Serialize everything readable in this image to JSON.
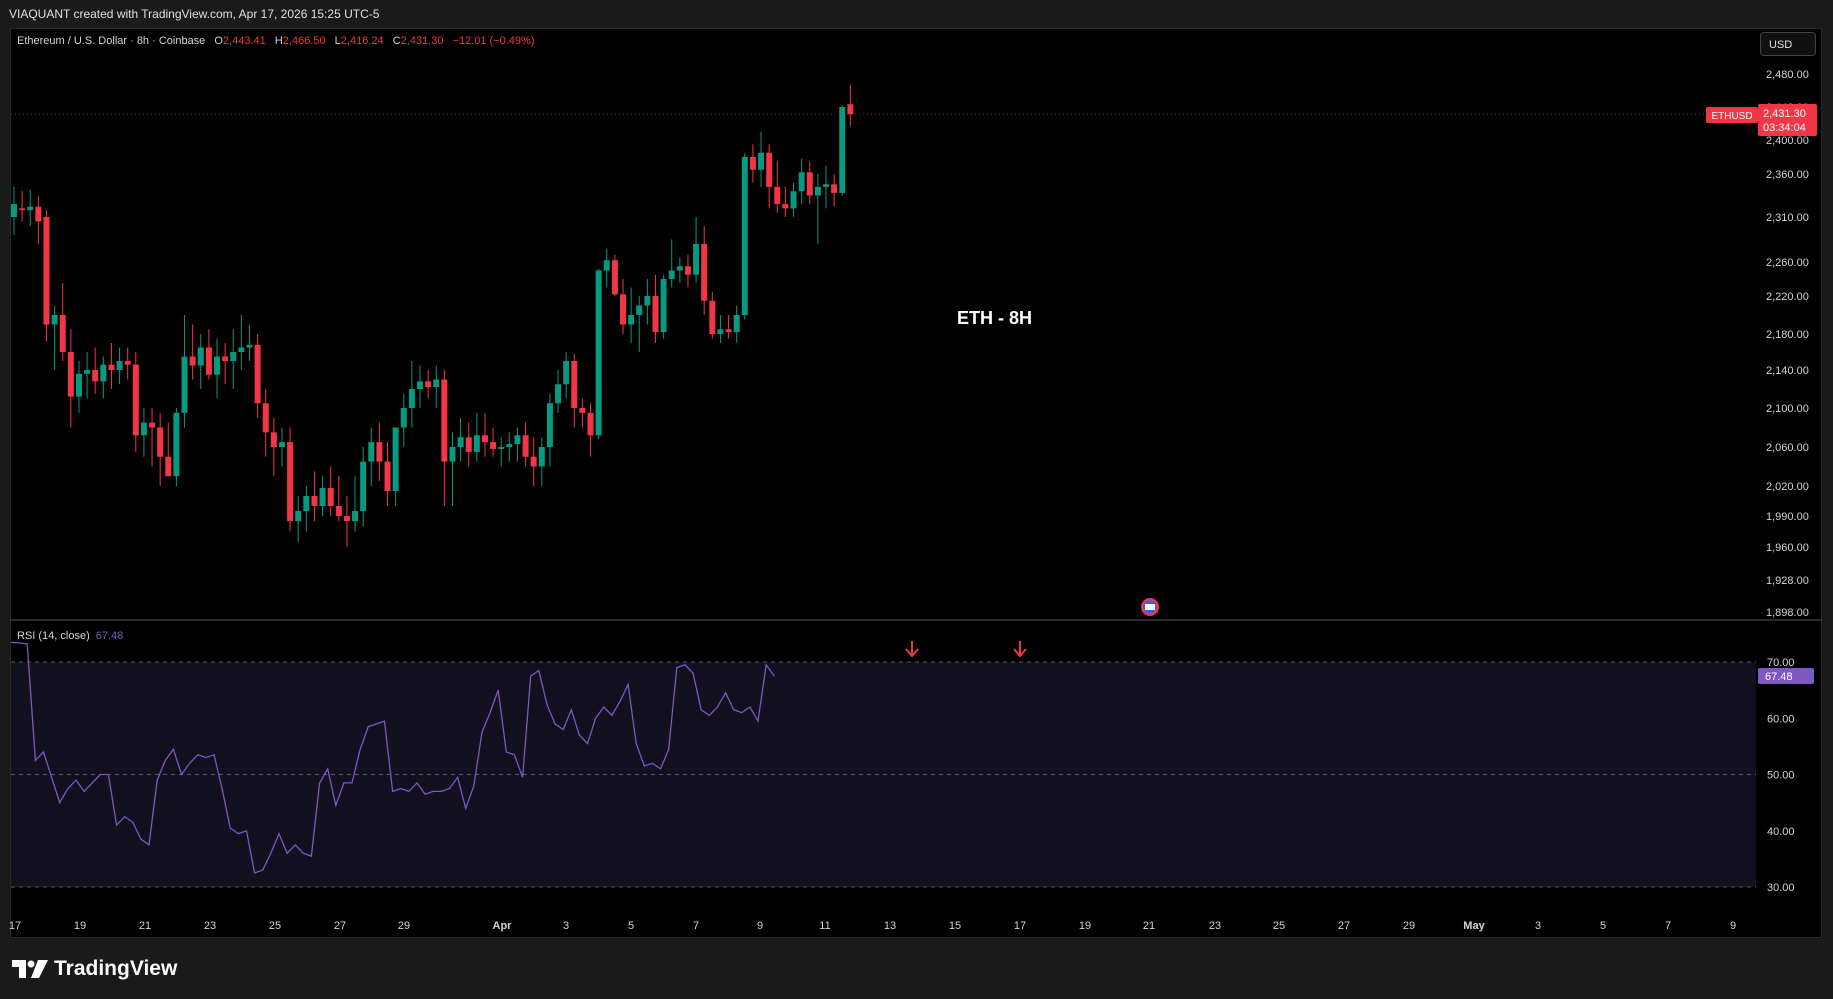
{
  "header": {
    "caption": "VIAQUANT created with TradingView.com, Apr 17, 2026 15:25 UTC-5"
  },
  "legend": {
    "symbol": "Ethereum / U.S. Dollar · 8h · Coinbase",
    "o_label": "O",
    "o_value": "2,443.41",
    "h_label": "H",
    "h_value": "2,466.50",
    "l_label": "L",
    "l_value": "2,416.24",
    "c_label": "C",
    "c_value": "2,431.30",
    "change": "−12.01 (−0.49%)"
  },
  "currency_button": "USD",
  "annotation": "ETH - 8H",
  "price_tag": {
    "symbol": "ETHUSD",
    "price": "2,431.30",
    "countdown": "03:34:04"
  },
  "rsi": {
    "label": "RSI (14, close)",
    "value": "67.48"
  },
  "footer": {
    "brand": "TradingView"
  },
  "colors": {
    "up": "#089981",
    "down": "#f23645",
    "rsi": "#7e57c2",
    "background": "#000000"
  },
  "chart_data": [
    {
      "type": "candlestick",
      "title": "Ethereum / U.S. Dollar · 8h · Coinbase",
      "price_axis_ticks": [
        2480,
        2440,
        2400,
        2360,
        2310,
        2260,
        2220,
        2180,
        2140,
        2100,
        2060,
        2020,
        1990,
        1960,
        1928,
        1898
      ],
      "price_axis_labels": [
        "2,480.00",
        "2,440.00",
        "2,400.00",
        "2,360.00",
        "2,310.00",
        "2,260.00",
        "2,220.00",
        "2,180.00",
        "2,140.00",
        "2,100.00",
        "2,060.00",
        "2,020.00",
        "1,990.00",
        "1,960.00",
        "1,928.00",
        "1,898.00"
      ],
      "time_axis_labels": [
        "17",
        "19",
        "21",
        "23",
        "25",
        "27",
        "29",
        "Apr",
        "3",
        "5",
        "7",
        "9",
        "11",
        "13",
        "15",
        "17",
        "19",
        "21",
        "23",
        "25",
        "27",
        "29",
        "May",
        "3",
        "5",
        "7",
        "9"
      ],
      "ohlc": [
        [
          2310,
          2345,
          2290,
          2325
        ],
        [
          2320,
          2340,
          2305,
          2318
        ],
        [
          2318,
          2342,
          2300,
          2322
        ],
        [
          2322,
          2335,
          2280,
          2305
        ],
        [
          2310,
          2318,
          2172,
          2190
        ],
        [
          2190,
          2210,
          2140,
          2200
        ],
        [
          2200,
          2235,
          2150,
          2160
        ],
        [
          2160,
          2185,
          2080,
          2112
        ],
        [
          2112,
          2150,
          2095,
          2136
        ],
        [
          2136,
          2160,
          2110,
          2140
        ],
        [
          2140,
          2165,
          2115,
          2128
        ],
        [
          2128,
          2155,
          2110,
          2146
        ],
        [
          2146,
          2170,
          2120,
          2140
        ],
        [
          2140,
          2165,
          2125,
          2150
        ],
        [
          2150,
          2165,
          2130,
          2146
        ],
        [
          2146,
          2160,
          2055,
          2072
        ],
        [
          2072,
          2100,
          2050,
          2085
        ],
        [
          2085,
          2100,
          2040,
          2080
        ],
        [
          2080,
          2095,
          2020,
          2050
        ],
        [
          2050,
          2085,
          2030,
          2030
        ],
        [
          2030,
          2100,
          2020,
          2095
        ],
        [
          2095,
          2200,
          2080,
          2155
        ],
        [
          2155,
          2190,
          2130,
          2145
        ],
        [
          2145,
          2180,
          2120,
          2165
        ],
        [
          2165,
          2185,
          2130,
          2135
        ],
        [
          2135,
          2175,
          2110,
          2155
        ],
        [
          2155,
          2170,
          2125,
          2150
        ],
        [
          2150,
          2185,
          2120,
          2160
        ],
        [
          2160,
          2200,
          2140,
          2165
        ],
        [
          2165,
          2190,
          2150,
          2168
        ],
        [
          2168,
          2180,
          2090,
          2105
        ],
        [
          2105,
          2120,
          2050,
          2075
        ],
        [
          2075,
          2090,
          2030,
          2060
        ],
        [
          2060,
          2080,
          2040,
          2065
        ],
        [
          2065,
          2080,
          1975,
          1985
        ],
        [
          1985,
          2010,
          1965,
          1995
        ],
        [
          1995,
          2020,
          1975,
          2010
        ],
        [
          2010,
          2035,
          1985,
          2000
        ],
        [
          2000,
          2030,
          1990,
          2018
        ],
        [
          2018,
          2040,
          1990,
          2000
        ],
        [
          2000,
          2030,
          1985,
          1990
        ],
        [
          1990,
          2010,
          1960,
          1985
        ],
        [
          1985,
          2030,
          1975,
          1995
        ],
        [
          1995,
          2060,
          1980,
          2045
        ],
        [
          2045,
          2080,
          2020,
          2065
        ],
        [
          2065,
          2085,
          2025,
          2045
        ],
        [
          2045,
          2065,
          2000,
          2015
        ],
        [
          2015,
          2080,
          2000,
          2080
        ],
        [
          2080,
          2115,
          2060,
          2100
        ],
        [
          2100,
          2150,
          2080,
          2120
        ],
        [
          2120,
          2145,
          2100,
          2128
        ],
        [
          2128,
          2140,
          2110,
          2122
        ],
        [
          2122,
          2145,
          2100,
          2130
        ],
        [
          2130,
          2140,
          2000,
          2045
        ],
        [
          2045,
          2075,
          2000,
          2060
        ],
        [
          2060,
          2090,
          2045,
          2070
        ],
        [
          2070,
          2085,
          2040,
          2055
        ],
        [
          2055,
          2095,
          2045,
          2072
        ],
        [
          2072,
          2095,
          2050,
          2065
        ],
        [
          2065,
          2080,
          2050,
          2058
        ],
        [
          2058,
          2070,
          2040,
          2060
        ],
        [
          2060,
          2075,
          2045,
          2063
        ],
        [
          2063,
          2080,
          2045,
          2072
        ],
        [
          2072,
          2085,
          2040,
          2050
        ],
        [
          2050,
          2070,
          2020,
          2040
        ],
        [
          2040,
          2070,
          2020,
          2060
        ],
        [
          2060,
          2115,
          2040,
          2105
        ],
        [
          2105,
          2140,
          2095,
          2125
        ],
        [
          2125,
          2160,
          2110,
          2150
        ],
        [
          2150,
          2158,
          2080,
          2100
        ],
        [
          2100,
          2110,
          2080,
          2095
        ],
        [
          2095,
          2105,
          2050,
          2072
        ],
        [
          2072,
          2252,
          2068,
          2250
        ],
        [
          2250,
          2275,
          2230,
          2262
        ],
        [
          2262,
          2268,
          2220,
          2222
        ],
        [
          2222,
          2240,
          2180,
          2190
        ],
        [
          2190,
          2230,
          2170,
          2200
        ],
        [
          2200,
          2220,
          2160,
          2210
        ],
        [
          2210,
          2240,
          2190,
          2220
        ],
        [
          2220,
          2245,
          2170,
          2182
        ],
        [
          2182,
          2245,
          2175,
          2240
        ],
        [
          2240,
          2285,
          2230,
          2250
        ],
        [
          2250,
          2265,
          2235,
          2255
        ],
        [
          2255,
          2268,
          2230,
          2245
        ],
        [
          2245,
          2310,
          2235,
          2280
        ],
        [
          2280,
          2300,
          2200,
          2215
        ],
        [
          2215,
          2225,
          2175,
          2180
        ],
        [
          2180,
          2200,
          2170,
          2185
        ],
        [
          2185,
          2200,
          2175,
          2182
        ],
        [
          2182,
          2210,
          2170,
          2200
        ],
        [
          2200,
          2385,
          2195,
          2380
        ],
        [
          2380,
          2395,
          2350,
          2365
        ],
        [
          2365,
          2410,
          2345,
          2385
        ],
        [
          2385,
          2395,
          2320,
          2345
        ],
        [
          2345,
          2375,
          2315,
          2325
        ],
        [
          2325,
          2345,
          2310,
          2320
        ],
        [
          2320,
          2350,
          2310,
          2340
        ],
        [
          2340,
          2378,
          2325,
          2362
        ],
        [
          2362,
          2375,
          2325,
          2335
        ],
        [
          2335,
          2360,
          2280,
          2345
        ],
        [
          2345,
          2370,
          2320,
          2348
        ],
        [
          2348,
          2360,
          2322,
          2338
        ],
        [
          2338,
          2442,
          2335,
          2440
        ],
        [
          2443.41,
          2466.5,
          2416.24,
          2431.3
        ]
      ]
    },
    {
      "type": "line",
      "title": "RSI (14, close)",
      "y_axis_ticks": [
        70,
        60,
        50,
        40,
        30
      ],
      "y_axis_labels": [
        "70.00",
        "60.00",
        "50.00",
        "40.00",
        "30.00"
      ],
      "band": [
        30,
        70
      ],
      "middle": 50,
      "current": 67.48,
      "values": [
        73.5,
        73.4,
        73.2,
        52.5,
        54,
        49.5,
        45,
        47.5,
        49,
        47,
        48.5,
        50,
        50,
        41,
        42.5,
        41.5,
        38.5,
        37.5,
        49,
        52.5,
        54.5,
        50,
        52,
        53.5,
        53,
        53.5,
        47.5,
        40.5,
        39.5,
        40,
        32.5,
        33,
        36,
        39.5,
        36,
        37.5,
        36,
        35.5,
        48.5,
        51,
        44.5,
        48.5,
        48.5,
        54.5,
        58.5,
        59,
        59.5,
        47,
        47.5,
        47,
        48.5,
        46.5,
        47,
        47,
        47.5,
        49.5,
        44,
        48,
        57.5,
        61,
        65,
        54,
        53.5,
        49.5,
        67.5,
        68.5,
        62.5,
        59,
        58,
        61.5,
        57,
        55.5,
        60,
        62,
        60.5,
        63,
        66,
        55.5,
        51.5,
        52,
        51,
        54.5,
        69,
        69.5,
        68,
        61.5,
        60.5,
        62,
        64.5,
        61.5,
        61,
        62,
        59.5,
        69.5,
        67.48
      ]
    }
  ]
}
